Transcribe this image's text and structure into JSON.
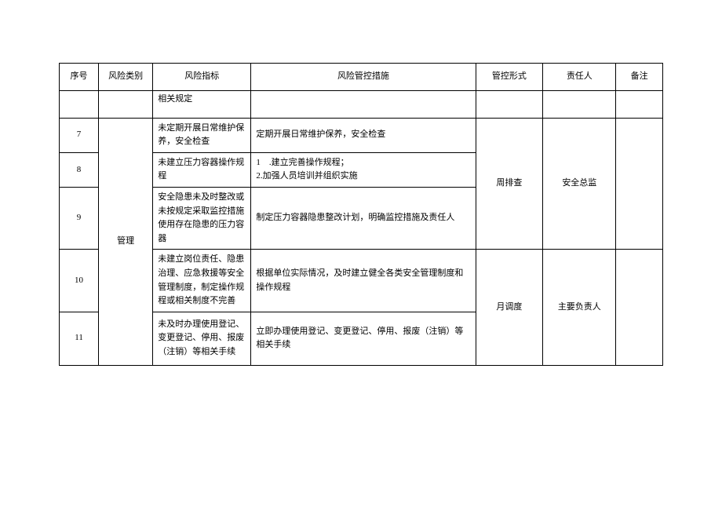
{
  "table": {
    "headers": {
      "seq": "序号",
      "category": "风险类别",
      "indicator": "风险指标",
      "measure": "风险管控措施",
      "form": "管控形式",
      "responsible": "责任人",
      "note": "备注"
    },
    "fragment_row": {
      "indicator": "相关规定"
    },
    "category_label": "管理",
    "group1": {
      "form": "周排查",
      "responsible": "安全总监"
    },
    "group2": {
      "form": "月调度",
      "responsible": "主要负责人"
    },
    "rows": [
      {
        "seq": "7",
        "indicator": "未定期开展日常维护保养，安全检查",
        "measure": "定期开展日常维护保养，安全检查"
      },
      {
        "seq": "8",
        "indicator": "未建立压力容器操作规程",
        "measure": "1　.建立完善操作规程；\n2.加强人员培训并组织实施"
      },
      {
        "seq": "9",
        "indicator": "安全隐患未及时整改或未按规定采取监控措施使用存在隐患的压力容器",
        "measure": "制定压力容器隐患整改计划，明确监控措施及责任人"
      },
      {
        "seq": "10",
        "indicator": "未建立岗位责任、隐患治理、应急救援等安全管理制度，制定操作规程或相关制度不完善",
        "measure": "根据单位实际情况，及时建立健全各类安全管理制度和操作规程"
      },
      {
        "seq": "11",
        "indicator": "未及时办理使用登记、变更登记、停用、报废（注销）等相关手续",
        "measure": "立即办理使用登记、变更登记、停用、报废（注销）等相关手续"
      }
    ]
  },
  "style": {
    "font_size": 11,
    "border_color": "#000000",
    "background_color": "#ffffff",
    "text_color": "#000000"
  }
}
